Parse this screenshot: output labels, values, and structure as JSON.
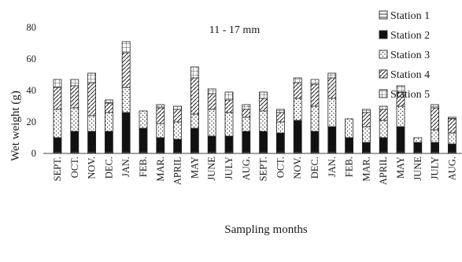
{
  "chart_data": {
    "type": "bar",
    "stacked": true,
    "title": "11 - 17 mm",
    "xlabel": "Sampling months",
    "ylabel": "Wet weight (g)",
    "ylim": [
      0,
      80
    ],
    "yticks": [
      "0",
      "20",
      "40",
      "60",
      "80"
    ],
    "grid": false,
    "legend_position": "top-right",
    "categories": [
      "SEPT.",
      "OCT.",
      "NOV.",
      "DEC.",
      "JAN.",
      "FEB.",
      "MAR.",
      "APRIL",
      "MAY",
      "JUNE",
      "JULY",
      "AUG.",
      "SEPT.",
      "OCT.",
      "NOV.",
      "DEC.",
      "JAN.",
      "FEB.",
      "MAR.",
      "APRIL",
      "MAY",
      "JUNE",
      "JULY",
      "AUG."
    ],
    "series": [
      {
        "name": "Station 1",
        "color": "#ffffff",
        "values": [
          1,
          1,
          1,
          1,
          1,
          1,
          1,
          1,
          1,
          1,
          1,
          1,
          1,
          1,
          1,
          1,
          1,
          1,
          1,
          1,
          1,
          1,
          1,
          1
        ]
      },
      {
        "name": "Station 2",
        "color": "#111111",
        "values": [
          9,
          13,
          13,
          13,
          25,
          15,
          9,
          8,
          15,
          10,
          10,
          13,
          13,
          12,
          20,
          13,
          16,
          9,
          6,
          9,
          16,
          6,
          6,
          5
        ]
      },
      {
        "name": "Station 3",
        "color": "#ffffff",
        "values": [
          18,
          15,
          10,
          12,
          16,
          11,
          9,
          11,
          9,
          17,
          15,
          9,
          13,
          7,
          14,
          16,
          18,
          12,
          10,
          11,
          13,
          3,
          8,
          7
        ]
      },
      {
        "name": "Station 4",
        "color": "#ffffff",
        "values": [
          14,
          14,
          21,
          6,
          22,
          0,
          10,
          8,
          23,
          10,
          8,
          5,
          8,
          6,
          10,
          14,
          13,
          0,
          9,
          7,
          9,
          0,
          14,
          9
        ]
      },
      {
        "name": "Station 5",
        "color": "#ffffff",
        "values": [
          5,
          4,
          6,
          2,
          7,
          0,
          2,
          2,
          7,
          3,
          5,
          3,
          4,
          2,
          3,
          3,
          3,
          0,
          2,
          2,
          4,
          0,
          2,
          1
        ]
      }
    ]
  }
}
